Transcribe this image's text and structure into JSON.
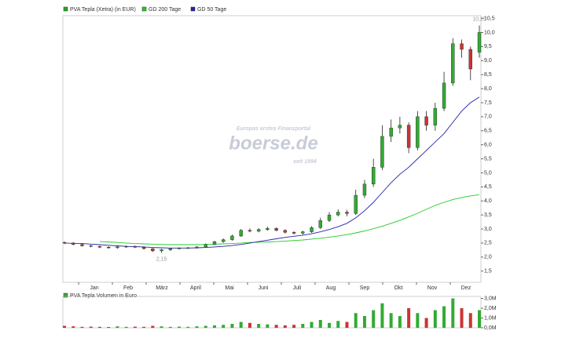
{
  "chart_data": [
    {
      "type": "candlestick",
      "legend": [
        {
          "name": "PVA Tepla (Xetra) (in EUR)",
          "color": "#22aa22"
        },
        {
          "name": "GD 200 Tage",
          "color": "#22cc22"
        },
        {
          "name": "GD 50 Tage",
          "color": "#2222aa"
        }
      ],
      "months": [
        "Jan",
        "Feb",
        "März",
        "April",
        "Mai",
        "Juni",
        "Juli",
        "Aug",
        "Sep",
        "Okt",
        "Nov",
        "Dez"
      ],
      "open": [
        2.52,
        2.5,
        2.45,
        2.4,
        2.38,
        2.35,
        2.33,
        2.36,
        2.38,
        2.35,
        2.3,
        2.22,
        2.26,
        2.3,
        2.32,
        2.33,
        2.36,
        2.45,
        2.55,
        2.62,
        2.75,
        2.95,
        2.92,
        2.98,
        3.02,
        2.95,
        2.88,
        2.85,
        2.9,
        3.05,
        3.3,
        3.5,
        3.6,
        3.55,
        4.2,
        4.6,
        5.2,
        6.3,
        6.6,
        6.7,
        5.9,
        7.0,
        6.7,
        7.3,
        8.2,
        9.6,
        9.4,
        9.3
      ],
      "high": [
        2.56,
        2.53,
        2.48,
        2.44,
        2.41,
        2.39,
        2.4,
        2.42,
        2.42,
        2.38,
        2.32,
        2.29,
        2.33,
        2.35,
        2.36,
        2.39,
        2.48,
        2.58,
        2.66,
        2.8,
        3.0,
        3.02,
        3.03,
        3.08,
        3.06,
        2.99,
        2.92,
        2.94,
        3.1,
        3.4,
        3.6,
        3.7,
        3.68,
        4.4,
        4.75,
        5.5,
        6.7,
        6.9,
        7.0,
        6.8,
        7.2,
        7.2,
        7.5,
        8.6,
        9.8,
        9.75,
        9.5,
        10.25
      ],
      "low": [
        2.46,
        2.42,
        2.37,
        2.35,
        2.32,
        2.3,
        2.3,
        2.33,
        2.32,
        2.27,
        2.18,
        2.15,
        2.22,
        2.27,
        2.29,
        2.3,
        2.34,
        2.42,
        2.51,
        2.58,
        2.72,
        2.88,
        2.88,
        2.94,
        2.92,
        2.84,
        2.8,
        2.8,
        2.86,
        3.0,
        3.25,
        3.45,
        3.45,
        3.5,
        4.1,
        4.5,
        5.1,
        6.1,
        6.4,
        5.7,
        5.8,
        6.5,
        6.5,
        7.2,
        8.1,
        9.1,
        8.3,
        9.1
      ],
      "close": [
        2.5,
        2.45,
        2.4,
        2.38,
        2.35,
        2.33,
        2.36,
        2.38,
        2.35,
        2.3,
        2.22,
        2.26,
        2.3,
        2.32,
        2.33,
        2.36,
        2.45,
        2.55,
        2.62,
        2.75,
        2.95,
        2.92,
        2.98,
        3.02,
        2.95,
        2.88,
        2.85,
        2.9,
        3.05,
        3.3,
        3.5,
        3.6,
        3.55,
        4.2,
        4.6,
        5.2,
        6.3,
        6.6,
        6.7,
        5.9,
        7.0,
        6.7,
        7.3,
        8.2,
        9.6,
        9.4,
        8.7,
        10.0
      ],
      "up_color": "#33aa33",
      "down_color": "#cc3333",
      "series": [
        {
          "name": "GD 200 Tage",
          "color": "#22cc22",
          "values": [
            null,
            null,
            null,
            null,
            2.55,
            2.54,
            2.52,
            2.5,
            2.48,
            2.47,
            2.46,
            2.45,
            2.44,
            2.44,
            2.44,
            2.44,
            2.45,
            2.46,
            2.47,
            2.48,
            2.5,
            2.52,
            2.53,
            2.54,
            2.55,
            2.57,
            2.59,
            2.61,
            2.64,
            2.67,
            2.71,
            2.75,
            2.8,
            2.86,
            2.93,
            3.01,
            3.1,
            3.2,
            3.31,
            3.43,
            3.56,
            3.7,
            3.84,
            3.95,
            4.05,
            4.12,
            4.18,
            4.22
          ]
        },
        {
          "name": "GD 50 Tage",
          "color": "#2222aa",
          "values": [
            2.5,
            2.49,
            2.48,
            2.46,
            2.44,
            2.42,
            2.4,
            2.38,
            2.37,
            2.36,
            2.34,
            2.33,
            2.32,
            2.32,
            2.32,
            2.33,
            2.34,
            2.36,
            2.38,
            2.41,
            2.45,
            2.5,
            2.55,
            2.6,
            2.65,
            2.7,
            2.74,
            2.78,
            2.83,
            2.9,
            2.98,
            3.08,
            3.2,
            3.4,
            3.65,
            3.95,
            4.3,
            4.65,
            4.95,
            5.2,
            5.5,
            5.8,
            6.1,
            6.4,
            6.8,
            7.2,
            7.5,
            7.7
          ]
        }
      ],
      "annotations": [
        {
          "value": 10.25,
          "label": "10,25",
          "at": "high"
        },
        {
          "value": 2.15,
          "label": "2,15",
          "at": "low"
        }
      ],
      "watermark": [
        "Europas erstes Finanzportal",
        "boerse.de",
        "seit 1994"
      ],
      "ylim": [
        1.1,
        10.6
      ],
      "yticks": [
        {
          "value": 1.5,
          "label": "1,5"
        },
        {
          "value": 2,
          "label": "2,0"
        },
        {
          "value": 2.5,
          "label": "2,5"
        },
        {
          "value": 3,
          "label": "3,0"
        },
        {
          "value": 3.5,
          "label": "3,5"
        },
        {
          "value": 4,
          "label": "4,0"
        },
        {
          "value": 4.5,
          "label": "4,5"
        },
        {
          "value": 5,
          "label": "5,0"
        },
        {
          "value": 5.5,
          "label": "5,5"
        },
        {
          "value": 6,
          "label": "6,0"
        },
        {
          "value": 6.5,
          "label": "6,5"
        },
        {
          "value": 7,
          "label": "7,0"
        },
        {
          "value": 7.5,
          "label": "7,5"
        },
        {
          "value": 8,
          "label": "8,0"
        },
        {
          "value": 8.5,
          "label": "8,5"
        },
        {
          "value": 9,
          "label": "9,0"
        },
        {
          "value": 9.5,
          "label": "9,5"
        },
        {
          "value": 10,
          "label": "10,0"
        },
        {
          "value": 10.5,
          "label": "10,5"
        }
      ]
    },
    {
      "type": "bar",
      "title": "PVA Tepla Volumen in Euro",
      "values": [
        200000,
        150000,
        100000,
        120000,
        100000,
        80000,
        150000,
        100000,
        120000,
        100000,
        200000,
        150000,
        100000,
        120000,
        100000,
        150000,
        200000,
        250000,
        300000,
        400000,
        600000,
        500000,
        400000,
        350000,
        300000,
        250000,
        300000,
        400000,
        600000,
        800000,
        500000,
        700000,
        600000,
        1500000,
        1200000,
        1800000,
        2500000,
        1500000,
        1200000,
        2000000,
        1500000,
        1000000,
        1800000,
        2200000,
        3000000,
        2000000,
        1500000,
        1800000
      ],
      "ylim": [
        0,
        3200000
      ],
      "yticks": [
        {
          "value": 0,
          "label": "0,0M"
        },
        {
          "value": 1000000,
          "label": "1,0M"
        },
        {
          "value": 2000000,
          "label": "2,0M"
        },
        {
          "value": 3000000,
          "label": "3,0M"
        }
      ]
    }
  ]
}
